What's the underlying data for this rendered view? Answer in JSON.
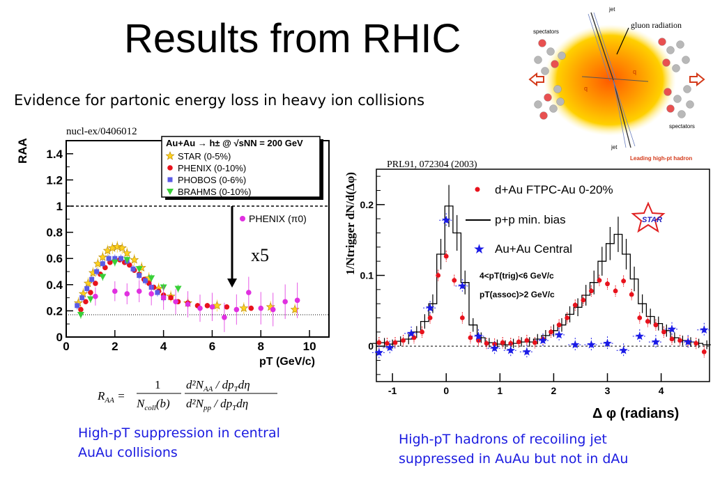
{
  "slide": {
    "title": "Results from RHIC",
    "subtitle": "Evidence for partonic energy loss in heavy ion collisions"
  },
  "left_panel": {
    "reference": "nucl-ex/0406012",
    "legend_header": "Au+Au → h± @ √sNN = 200 GeV",
    "legend_items": [
      "STAR (0-5%)",
      "PHENIX (0-10%)",
      "PHOBOS (0-6%)",
      "BRAHMS (0-10%)"
    ],
    "pi0_label": "PHENIX (π0)",
    "scale_label": "x5",
    "ylabel": "RAA",
    "xlabel": "pT (GeV/c)",
    "formula": "RAA = 1/Ncoll(b) · d²NAA/dpTdη / d²Npp/dpTdη",
    "caption_line1": "High-pT suppression in central",
    "caption_line2": "AuAu collisions"
  },
  "right_panel": {
    "reference": "PRL91, 072304 (2003)",
    "legend_items": [
      "d+Au FTPC-Au 0-20%",
      "p+p min. bias",
      "Au+Au Central"
    ],
    "cut1": "4<pT(trig)<6 GeV/c",
    "cut2": "pT(assoc)>2 GeV/c",
    "logo": "STAR",
    "ylabel": "1/Ntrigger dN/d(Δφ)",
    "xlabel": "Δ φ (radians)",
    "caption_line1": "High-pT hadrons of recoiling jet",
    "caption_line2": "suppressed in AuAu but not in dAu"
  },
  "diagram": {
    "labels": [
      "jet",
      "gluon radiation",
      "spectators",
      "spectators",
      "jet",
      "Leading high-pt hadron",
      "q",
      "q"
    ],
    "colors": {
      "core": "#ff5a00",
      "halo": "#ffd000",
      "arrow": "#d43a1a",
      "nucleon": "#b0b0b0"
    }
  },
  "colors": {
    "star": "#ffd21e",
    "phenix": "#e8121c",
    "phobos": "#5a5ae6",
    "brahms": "#38d038",
    "pi0": "#e030e0",
    "caption": "#1a1ae0",
    "auau": "#1a1ae6"
  },
  "chart_data": [
    {
      "type": "scatter",
      "title": "",
      "xlabel": "pT (GeV/c)",
      "ylabel": "RAA",
      "xlim": [
        0,
        10.8
      ],
      "ylim": [
        0,
        1.5
      ],
      "xticks": [
        0,
        2,
        4,
        6,
        8,
        10
      ],
      "yticks": [
        0,
        0.2,
        0.4,
        0.6,
        0.8,
        1,
        1.2,
        1.4
      ],
      "reference_lines": [
        1.0,
        0.17
      ],
      "series": [
        {
          "name": "STAR (0-5%)",
          "x": [
            0.5,
            0.7,
            0.9,
            1.1,
            1.3,
            1.5,
            1.7,
            1.9,
            2.1,
            2.3,
            2.5,
            2.8,
            3.1,
            3.4,
            3.8,
            4.3,
            5.0,
            6.2,
            7.3,
            8.4,
            9.4
          ],
          "y": [
            0.26,
            0.33,
            0.41,
            0.49,
            0.56,
            0.61,
            0.66,
            0.68,
            0.69,
            0.68,
            0.64,
            0.59,
            0.53,
            0.45,
            0.37,
            0.31,
            0.26,
            0.24,
            0.22,
            0.23,
            0.21
          ]
        },
        {
          "name": "PHENIX (0-10%)",
          "x": [
            0.6,
            0.8,
            1.0,
            1.2,
            1.4,
            1.6,
            1.8,
            2.0,
            2.2,
            2.4,
            2.6,
            2.8,
            3.0,
            3.2,
            3.4,
            3.6,
            3.8,
            4.0,
            4.3,
            4.6,
            5.0,
            5.4,
            5.8,
            6.6,
            7.6
          ],
          "y": [
            0.21,
            0.27,
            0.34,
            0.41,
            0.48,
            0.53,
            0.57,
            0.59,
            0.59,
            0.57,
            0.55,
            0.51,
            0.48,
            0.44,
            0.41,
            0.38,
            0.35,
            0.32,
            0.3,
            0.27,
            0.26,
            0.24,
            0.24,
            0.23,
            0.22
          ]
        },
        {
          "name": "PHOBOS (0-6%)",
          "x": [
            0.45,
            0.65,
            0.85,
            1.05,
            1.25,
            1.5,
            1.75,
            2.0,
            2.25,
            2.5,
            2.75,
            3.0,
            3.25,
            3.5,
            3.75,
            4.0
          ],
          "y": [
            0.24,
            0.3,
            0.37,
            0.44,
            0.5,
            0.56,
            0.6,
            0.6,
            0.6,
            0.58,
            0.52,
            0.47,
            0.43,
            0.38,
            0.34,
            0.3
          ]
        },
        {
          "name": "BRAHMS (0-10%)",
          "x": [
            0.6,
            1.0,
            1.5,
            2.0,
            2.5,
            3.0,
            3.5,
            4.0,
            4.6
          ],
          "y": [
            0.17,
            0.29,
            0.46,
            0.57,
            0.59,
            0.52,
            0.45,
            0.38,
            0.37
          ]
        },
        {
          "name": "PHENIX (π0)",
          "x": [
            1.2,
            2.0,
            2.5,
            3.0,
            3.5,
            4.0,
            4.5,
            5.0,
            5.5,
            6.0,
            6.5,
            7.0,
            7.5,
            8.0,
            8.5,
            9.0,
            9.5
          ],
          "y": [
            0.31,
            0.35,
            0.33,
            0.35,
            0.33,
            0.3,
            0.27,
            0.25,
            0.22,
            0.23,
            0.15,
            0.21,
            0.34,
            0.22,
            0.21,
            0.27,
            0.28
          ]
        }
      ]
    },
    {
      "type": "line",
      "title": "",
      "xlabel": "Δ φ (radians)",
      "ylabel": "1/Ntrigger dN/d(Δφ)",
      "xlim": [
        -1.3,
        4.9
      ],
      "ylim": [
        -0.05,
        0.25
      ],
      "xticks": [
        -1,
        0,
        1,
        2,
        3,
        4
      ],
      "yticks": [
        0,
        0.1,
        0.2
      ],
      "series": [
        {
          "name": "d+Au FTPC-Au 0-20%",
          "x": [
            -1.25,
            -1.1,
            -0.95,
            -0.8,
            -0.6,
            -0.45,
            -0.3,
            -0.15,
            0.0,
            0.15,
            0.3,
            0.45,
            0.6,
            0.75,
            0.9,
            1.05,
            1.2,
            1.35,
            1.5,
            1.65,
            1.8,
            1.95,
            2.1,
            2.25,
            2.4,
            2.55,
            2.7,
            2.85,
            3.0,
            3.15,
            3.3,
            3.45,
            3.6,
            3.75,
            3.9,
            4.05,
            4.2,
            4.35,
            4.5,
            4.65,
            4.8
          ],
          "y": [
            0.005,
            0.004,
            0.005,
            0.008,
            0.012,
            0.02,
            0.04,
            0.1,
            0.127,
            0.093,
            0.04,
            0.012,
            0.008,
            0.004,
            0.003,
            0.005,
            0.004,
            0.006,
            0.008,
            0.005,
            0.01,
            0.02,
            0.03,
            0.04,
            0.058,
            0.065,
            0.078,
            0.093,
            0.088,
            0.078,
            0.092,
            0.073,
            0.04,
            0.035,
            0.03,
            0.02,
            0.01,
            0.008,
            0.006,
            0.004,
            -0.008
          ]
        },
        {
          "name": "p+p min. bias",
          "x": [
            -1.3,
            -1.15,
            -1.0,
            -0.85,
            -0.7,
            -0.55,
            -0.4,
            -0.25,
            -0.1,
            0.05,
            0.2,
            0.35,
            0.5,
            0.65,
            0.8,
            0.95,
            1.1,
            1.25,
            1.4,
            1.55,
            1.7,
            1.85,
            2.0,
            2.15,
            2.3,
            2.45,
            2.6,
            2.75,
            2.9,
            3.05,
            3.2,
            3.35,
            3.5,
            3.65,
            3.8,
            3.95,
            4.1,
            4.25,
            4.4,
            4.55,
            4.7,
            4.85
          ],
          "y": [
            0.004,
            0.005,
            0.003,
            0.007,
            0.01,
            0.02,
            0.035,
            0.06,
            0.13,
            0.198,
            0.16,
            0.09,
            0.03,
            0.012,
            0.005,
            0.003,
            0.002,
            0.004,
            0.006,
            0.006,
            0.01,
            0.015,
            0.022,
            0.03,
            0.045,
            0.055,
            0.072,
            0.09,
            0.12,
            0.145,
            0.158,
            0.13,
            0.095,
            0.06,
            0.042,
            0.032,
            0.022,
            0.012,
            0.008,
            0.006,
            0.004,
            0.002
          ]
        },
        {
          "name": "Au+Au Central",
          "x": [
            -1.25,
            -1.05,
            -0.65,
            -0.3,
            0.0,
            0.3,
            0.6,
            0.9,
            1.2,
            1.5,
            1.8,
            2.1,
            2.4,
            2.7,
            3.0,
            3.3,
            3.6,
            3.9,
            4.2,
            4.5,
            4.8
          ],
          "y": [
            -0.009,
            -0.002,
            0.018,
            0.054,
            0.178,
            0.085,
            0.014,
            -0.003,
            -0.006,
            -0.008,
            0.008,
            0.016,
            0.002,
            0.002,
            0.004,
            -0.006,
            0.014,
            0.006,
            0.024,
            0.006,
            0.023
          ]
        }
      ]
    }
  ]
}
